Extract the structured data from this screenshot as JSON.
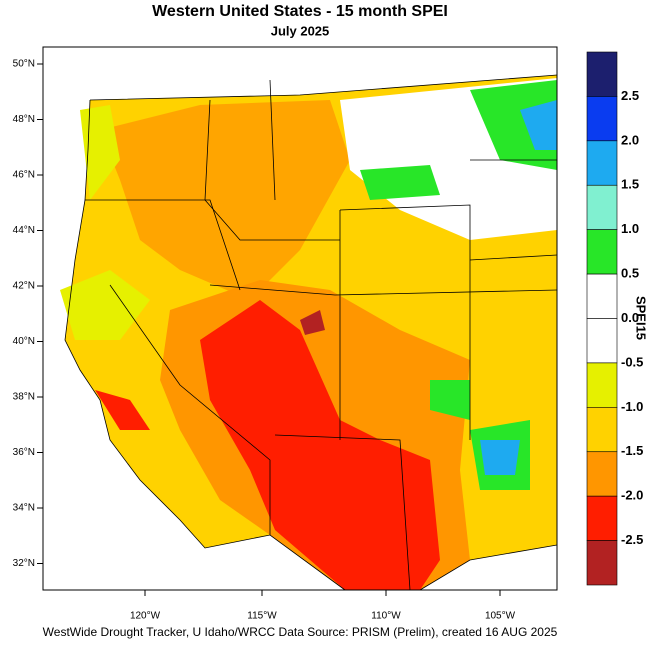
{
  "header": {
    "title": "Western United States - 15 month SPEI",
    "subtitle": "July 2025"
  },
  "map": {
    "lat_labels": [
      "50°N",
      "48°N",
      "46°N",
      "44°N",
      "42°N",
      "40°N",
      "38°N",
      "36°N",
      "34°N",
      "32°N"
    ],
    "lon_labels": [
      "120°W",
      "115°W",
      "110°W",
      "105°W"
    ]
  },
  "legend": {
    "title": "SPEI15",
    "colors": [
      "#1c1f6e",
      "#0a3cf0",
      "#1eaaf0",
      "#80f0d0",
      "#28e628",
      "#ffffff",
      "#ffffff",
      "#e6f000",
      "#ffd200",
      "#ff9600",
      "#ff1e00",
      "#b22222"
    ],
    "labels": [
      "2.5",
      "2.0",
      "1.5",
      "1.0",
      "0.5",
      "0.0",
      "-0.5",
      "-1.0",
      "-1.5",
      "-2.0",
      "-2.5"
    ]
  },
  "footer": "WestWide Drought Tracker, U Idaho/WRCC Data Source: PRISM (Prelim), created 16 AUG 2025"
}
